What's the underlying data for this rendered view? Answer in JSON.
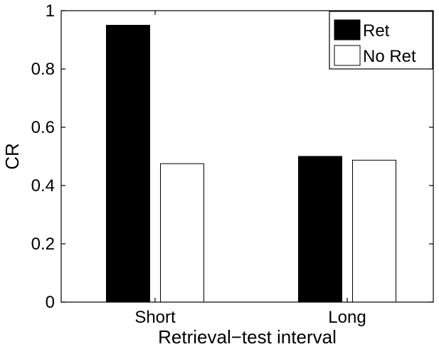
{
  "chart_data": {
    "type": "bar",
    "categories": [
      "Short",
      "Long"
    ],
    "series": [
      {
        "name": "Ret",
        "values": [
          0.95,
          0.5
        ],
        "color": "#000000"
      },
      {
        "name": "No Ret",
        "values": [
          0.475,
          0.487
        ],
        "color": "#ffffff"
      }
    ],
    "title": "",
    "xlabel": "Retrieval−test interval",
    "ylabel": "CR",
    "ylim": [
      0,
      1
    ],
    "yticks": [
      "0",
      "0.2",
      "0.4",
      "0.6",
      "0.8",
      "1"
    ],
    "grid": false,
    "legend": "top-right"
  }
}
